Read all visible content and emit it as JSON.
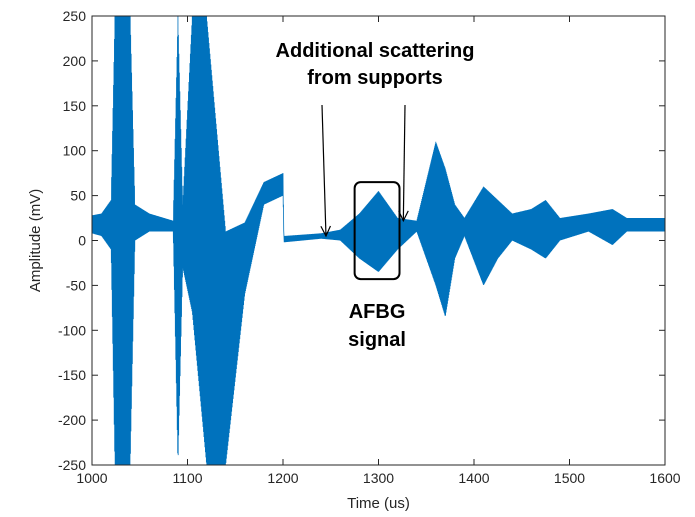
{
  "chart_data": {
    "type": "line",
    "xlabel": "Time (us)",
    "ylabel": "Amplitude (mV)",
    "xlim": [
      1000,
      1600
    ],
    "ylim": [
      -250,
      250
    ],
    "xticks": [
      1000,
      1100,
      1200,
      1300,
      1400,
      1500,
      1600
    ],
    "yticks": [
      250,
      200,
      150,
      100,
      50,
      0,
      -50,
      -100,
      -150,
      -200,
      -250
    ],
    "grid": false,
    "line_color": "#0072BD",
    "series": [
      {
        "envelope": [
          {
            "x": 1000,
            "y": [
              8,
              28
            ]
          },
          {
            "x": 1010,
            "y": [
              5,
              30
            ]
          },
          {
            "x": 1020,
            "y": [
              -10,
              45
            ]
          },
          {
            "x": 1024,
            "y": [
              -250,
              250
            ]
          },
          {
            "x": 1040,
            "y": [
              -250,
              250
            ]
          },
          {
            "x": 1045,
            "y": [
              0,
              40
            ]
          },
          {
            "x": 1060,
            "y": [
              10,
              30
            ]
          },
          {
            "x": 1085,
            "y": [
              10,
              22
            ]
          },
          {
            "x": 1090,
            "y": [
              -250,
              250
            ]
          },
          {
            "x": 1095,
            "y": [
              -30,
              40
            ]
          },
          {
            "x": 1105,
            "y": [
              -80,
              250
            ]
          },
          {
            "x": 1120,
            "y": [
              -250,
              250
            ]
          },
          {
            "x": 1140,
            "y": [
              -250,
              10
            ]
          },
          {
            "x": 1160,
            "y": [
              -60,
              20
            ]
          },
          {
            "x": 1180,
            "y": [
              40,
              65
            ]
          },
          {
            "x": 1200,
            "y": [
              50,
              75
            ]
          },
          {
            "x": 1201,
            "y": [
              -2,
              5
            ]
          },
          {
            "x": 1240,
            "y": [
              2,
              8
            ]
          },
          {
            "x": 1260,
            "y": [
              0,
              12
            ]
          },
          {
            "x": 1280,
            "y": [
              -20,
              30
            ]
          },
          {
            "x": 1300,
            "y": [
              -35,
              55
            ]
          },
          {
            "x": 1320,
            "y": [
              -10,
              25
            ]
          },
          {
            "x": 1340,
            "y": [
              10,
              22
            ]
          },
          {
            "x": 1360,
            "y": [
              -50,
              110
            ]
          },
          {
            "x": 1370,
            "y": [
              -85,
              80
            ]
          },
          {
            "x": 1380,
            "y": [
              -20,
              40
            ]
          },
          {
            "x": 1390,
            "y": [
              5,
              25
            ]
          },
          {
            "x": 1410,
            "y": [
              -50,
              60
            ]
          },
          {
            "x": 1425,
            "y": [
              -20,
              45
            ]
          },
          {
            "x": 1440,
            "y": [
              0,
              30
            ]
          },
          {
            "x": 1460,
            "y": [
              -10,
              35
            ]
          },
          {
            "x": 1475,
            "y": [
              -20,
              45
            ]
          },
          {
            "x": 1490,
            "y": [
              0,
              25
            ]
          },
          {
            "x": 1520,
            "y": [
              10,
              30
            ]
          },
          {
            "x": 1545,
            "y": [
              -5,
              35
            ]
          },
          {
            "x": 1560,
            "y": [
              10,
              25
            ]
          },
          {
            "x": 1600,
            "y": [
              10,
              25
            ]
          }
        ]
      }
    ],
    "annotations": [
      {
        "lines": [
          "Additional scattering",
          "from supports"
        ],
        "arrows_to": [
          {
            "x": 1245,
            "y": 5
          },
          {
            "x": 1326,
            "y": 22
          }
        ]
      },
      {
        "lines": [
          "AFBG",
          "signal"
        ],
        "box": {
          "x": [
            1275,
            1322
          ],
          "y": [
            -43,
            65
          ]
        }
      }
    ]
  }
}
